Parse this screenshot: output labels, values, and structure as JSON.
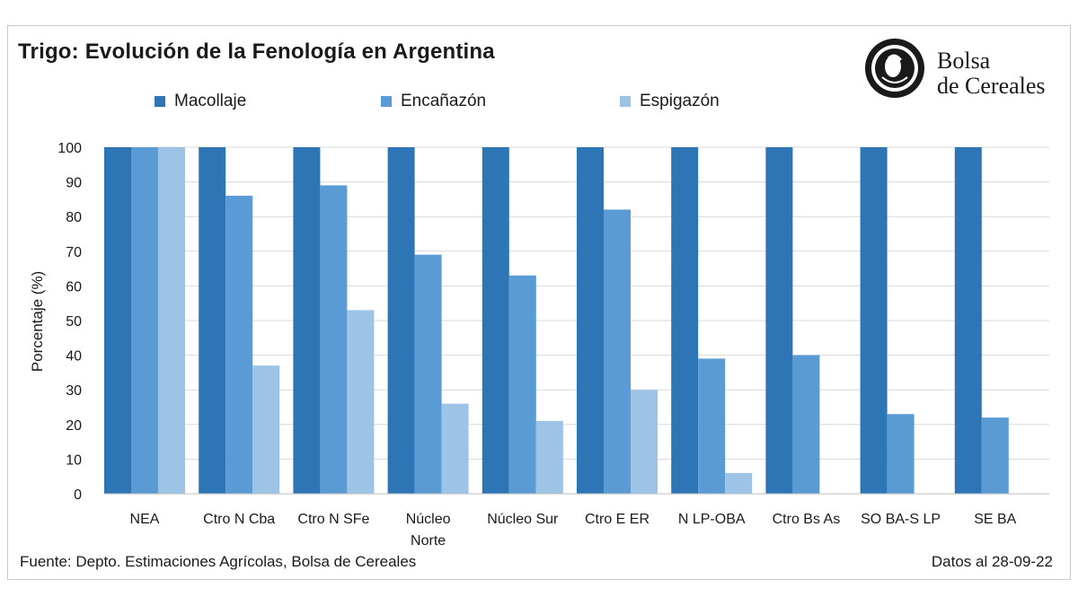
{
  "title": "Trigo: Evolución de la Fenología en Argentina",
  "logo": {
    "line1": "Bolsa",
    "line2": "de Cereales",
    "icon": "bolsa-cereales-seal-icon"
  },
  "footer": {
    "source": "Fuente: Depto. Estimaciones Agrícolas, Bolsa de Cereales",
    "date": "Datos al 28-09-22"
  },
  "colors": {
    "Macollaje": "#2e75b6",
    "Encañazón": "#5b9bd5",
    "Espigazón": "#9dc3e6",
    "grid": "#d9d9d9"
  },
  "chart_data": {
    "type": "bar",
    "ylabel": "Porcentaje (%)",
    "xlabel": "",
    "ylim": [
      0,
      100
    ],
    "yticks": [
      0,
      10,
      20,
      30,
      40,
      50,
      60,
      70,
      80,
      90,
      100
    ],
    "grid": true,
    "legend_position": "top",
    "categories": [
      "NEA",
      "Ctro N Cba",
      "Ctro N SFe",
      "Núcleo Norte",
      "Núcleo Sur",
      "Ctro E ER",
      "N LP-OBA",
      "Ctro Bs As",
      "SO BA-S LP",
      "SE BA"
    ],
    "series": [
      {
        "name": "Macollaje",
        "values": [
          100,
          100,
          100,
          100,
          100,
          100,
          100,
          100,
          100,
          100
        ]
      },
      {
        "name": "Encañazón",
        "values": [
          100,
          86,
          89,
          69,
          63,
          82,
          39,
          40,
          23,
          22
        ]
      },
      {
        "name": "Espigazón",
        "values": [
          100,
          37,
          53,
          26,
          21,
          30,
          6,
          0,
          0,
          0
        ]
      }
    ]
  }
}
